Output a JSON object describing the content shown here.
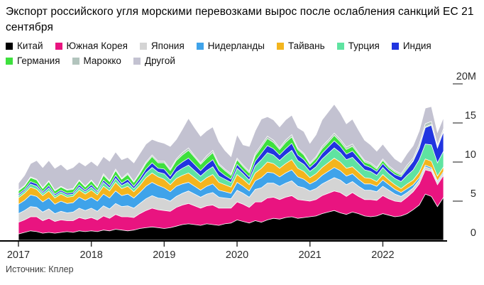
{
  "title": "Экспорт российского угля морскими перевозками вырос после ослабления санкций ЕС 21 сентября",
  "source": "Источник: Кплер",
  "chart_data": {
    "type": "area",
    "stacked": true,
    "x_start": "2017-01",
    "x_end": "2022-11",
    "x_frequency": "monthly",
    "x_ticks": [
      2017,
      2018,
      2019,
      2020,
      2021,
      2022
    ],
    "y_ticks": [
      {
        "value": 0,
        "label": "0"
      },
      {
        "value": 5,
        "label": "5"
      },
      {
        "value": 10,
        "label": "10"
      },
      {
        "value": 15,
        "label": "15"
      },
      {
        "value": 20,
        "label": "20M"
      }
    ],
    "ylim": [
      0,
      20
    ],
    "y_unit": "M",
    "grid": false,
    "legend_position": "top",
    "series": [
      {
        "name": "Китай",
        "color": "#000000",
        "values": [
          0.8,
          1.0,
          1.2,
          1.1,
          0.9,
          1.0,
          0.9,
          1.0,
          1.1,
          1.0,
          1.2,
          1.1,
          1.2,
          1.1,
          1.3,
          1.2,
          1.4,
          1.3,
          1.2,
          1.3,
          1.5,
          1.6,
          1.7,
          1.6,
          1.5,
          1.6,
          1.8,
          2.0,
          2.1,
          2.0,
          1.9,
          2.1,
          2.0,
          1.9,
          2.1,
          2.2,
          2.6,
          2.4,
          2.2,
          2.5,
          2.3,
          2.6,
          2.8,
          2.7,
          2.9,
          3.0,
          2.8,
          2.9,
          3.0,
          3.1,
          3.4,
          3.6,
          3.8,
          3.5,
          3.3,
          3.6,
          3.4,
          3.1,
          3.0,
          3.1,
          3.4,
          3.2,
          3.0,
          3.1,
          3.4,
          3.9,
          4.5,
          5.9,
          5.6,
          4.3,
          5.5
        ]
      },
      {
        "name": "Южная Корея",
        "color": "#e91480",
        "values": [
          1.5,
          1.6,
          1.8,
          1.9,
          1.6,
          1.8,
          1.5,
          1.6,
          1.4,
          1.5,
          1.7,
          1.6,
          1.7,
          1.5,
          1.8,
          1.6,
          1.9,
          1.7,
          1.8,
          1.6,
          1.9,
          2.2,
          2.4,
          2.3,
          2.3,
          2.1,
          2.4,
          2.5,
          2.6,
          2.4,
          2.2,
          2.3,
          2.5,
          2.2,
          2.0,
          1.9,
          2.3,
          2.2,
          2.0,
          2.4,
          2.6,
          2.8,
          2.7,
          2.5,
          2.6,
          2.7,
          2.4,
          2.2,
          2.0,
          2.1,
          2.3,
          2.4,
          2.5,
          2.6,
          2.3,
          2.5,
          2.2,
          2.1,
          2.2,
          2.0,
          2.3,
          2.1,
          2.0,
          1.8,
          2.1,
          2.3,
          2.7,
          3.1,
          3.2,
          2.8,
          2.8
        ]
      },
      {
        "name": "Япония",
        "color": "#d4d4d4",
        "values": [
          1.1,
          1.2,
          1.3,
          1.2,
          1.1,
          1.2,
          1.0,
          1.1,
          1.0,
          1.1,
          1.2,
          1.1,
          1.2,
          1.1,
          1.3,
          1.2,
          1.4,
          1.3,
          1.4,
          1.2,
          1.3,
          1.5,
          1.6,
          1.5,
          1.5,
          1.3,
          1.4,
          1.5,
          1.6,
          1.5,
          1.4,
          1.5,
          1.6,
          1.4,
          1.3,
          1.2,
          1.5,
          1.4,
          1.3,
          1.6,
          1.8,
          1.9,
          1.8,
          1.7,
          1.8,
          1.9,
          1.7,
          1.6,
          1.3,
          1.4,
          1.5,
          1.6,
          1.7,
          1.6,
          1.5,
          1.4,
          1.3,
          1.2,
          1.2,
          1.1,
          1.2,
          1.1,
          0.9,
          0.7,
          0.6,
          0.5,
          0.5,
          0.4,
          0.3,
          0.3,
          0.3
        ]
      },
      {
        "name": "Нидерланды",
        "color": "#3fa3ea",
        "values": [
          1.2,
          1.3,
          1.5,
          1.4,
          1.3,
          1.4,
          1.2,
          1.3,
          1.2,
          1.2,
          1.4,
          1.3,
          1.4,
          1.3,
          1.5,
          1.4,
          1.6,
          1.4,
          1.5,
          1.3,
          1.4,
          1.6,
          1.7,
          1.6,
          1.4,
          1.2,
          1.3,
          1.2,
          1.1,
          1.0,
          0.9,
          1.0,
          1.1,
          0.9,
          0.8,
          0.7,
          1.0,
          0.9,
          0.8,
          1.1,
          1.3,
          1.4,
          1.3,
          1.2,
          1.3,
          1.4,
          1.2,
          1.1,
          0.9,
          1.0,
          1.1,
          1.2,
          1.3,
          1.2,
          1.1,
          1.0,
          0.9,
          0.8,
          0.8,
          0.7,
          0.8,
          0.7,
          0.6,
          0.5,
          0.5,
          0.4,
          0.3,
          0.2,
          0.2,
          0.2,
          0.2
        ]
      },
      {
        "name": "Тайвань",
        "color": "#f3b51e",
        "values": [
          0.8,
          0.9,
          1.0,
          0.9,
          0.8,
          0.9,
          0.8,
          0.9,
          0.8,
          0.8,
          0.9,
          0.8,
          0.9,
          0.8,
          1.0,
          0.9,
          1.1,
          0.9,
          1.0,
          0.8,
          0.9,
          1.1,
          1.2,
          1.1,
          1.1,
          0.9,
          1.0,
          1.1,
          1.2,
          1.1,
          1.0,
          1.1,
          1.2,
          1.0,
          0.9,
          0.8,
          1.0,
          0.9,
          0.8,
          1.0,
          1.2,
          1.3,
          1.2,
          1.1,
          1.2,
          1.3,
          1.1,
          1.0,
          0.8,
          0.9,
          1.0,
          1.1,
          1.2,
          1.1,
          1.0,
          0.9,
          0.9,
          0.8,
          0.7,
          0.6,
          0.7,
          0.6,
          0.6,
          0.5,
          0.6,
          0.6,
          0.7,
          0.8,
          0.8,
          0.6,
          0.6
        ]
      },
      {
        "name": "Турция",
        "color": "#5fe3a1",
        "values": [
          0.3,
          0.3,
          0.4,
          0.4,
          0.3,
          0.4,
          0.3,
          0.3,
          0.3,
          0.3,
          0.4,
          0.3,
          0.4,
          0.3,
          0.5,
          0.4,
          0.5,
          0.4,
          0.5,
          0.4,
          0.5,
          0.6,
          0.7,
          0.6,
          0.7,
          0.6,
          0.8,
          0.9,
          1.0,
          0.9,
          0.8,
          0.9,
          1.0,
          0.8,
          0.7,
          0.6,
          0.8,
          0.7,
          0.6,
          0.9,
          1.1,
          1.2,
          1.1,
          1.0,
          1.1,
          1.2,
          1.0,
          0.9,
          0.8,
          0.9,
          1.1,
          1.2,
          1.3,
          1.2,
          1.1,
          1.2,
          1.1,
          1.0,
          0.9,
          0.8,
          0.9,
          0.8,
          0.8,
          0.9,
          1.1,
          1.3,
          1.6,
          1.9,
          2.1,
          1.7,
          2.0
        ]
      },
      {
        "name": "Индия",
        "color": "#2135e0",
        "values": [
          0.2,
          0.2,
          0.3,
          0.3,
          0.2,
          0.3,
          0.2,
          0.2,
          0.2,
          0.2,
          0.3,
          0.2,
          0.3,
          0.2,
          0.3,
          0.3,
          0.4,
          0.3,
          0.4,
          0.3,
          0.4,
          0.5,
          0.6,
          0.5,
          0.6,
          0.5,
          0.7,
          0.8,
          0.9,
          0.8,
          0.7,
          0.8,
          0.9,
          0.7,
          0.5,
          0.4,
          0.5,
          0.4,
          0.4,
          0.6,
          0.8,
          0.9,
          0.8,
          0.7,
          0.8,
          0.9,
          0.7,
          0.6,
          0.5,
          0.6,
          0.7,
          0.8,
          0.9,
          0.8,
          0.7,
          0.8,
          0.7,
          0.6,
          0.5,
          0.5,
          0.5,
          0.5,
          0.5,
          0.6,
          0.8,
          1.1,
          1.5,
          2.1,
          2.5,
          1.9,
          2.5
        ]
      },
      {
        "name": "Германия",
        "color": "#3ee03e",
        "values": [
          0.4,
          0.4,
          0.5,
          0.5,
          0.4,
          0.5,
          0.4,
          0.4,
          0.4,
          0.4,
          0.5,
          0.4,
          0.5,
          0.4,
          0.6,
          0.5,
          0.6,
          0.5,
          0.6,
          0.5,
          0.6,
          0.7,
          0.8,
          0.7,
          0.8,
          0.7,
          0.8,
          0.9,
          1.0,
          0.9,
          0.8,
          0.8,
          0.9,
          0.7,
          0.6,
          0.5,
          0.6,
          0.5,
          0.5,
          0.7,
          0.8,
          0.9,
          0.8,
          0.7,
          0.8,
          0.8,
          0.7,
          0.6,
          0.4,
          0.5,
          0.6,
          0.6,
          0.7,
          0.6,
          0.6,
          0.6,
          0.5,
          0.4,
          0.4,
          0.3,
          0.4,
          0.3,
          0.3,
          0.2,
          0.2,
          0.1,
          0.1,
          0.1,
          0.1,
          0.1,
          0.1
        ]
      },
      {
        "name": "Марокко",
        "color": "#b2c4bd",
        "values": [
          0.1,
          0.1,
          0.1,
          0.1,
          0.1,
          0.1,
          0.1,
          0.1,
          0.1,
          0.1,
          0.1,
          0.1,
          0.1,
          0.1,
          0.2,
          0.1,
          0.2,
          0.1,
          0.2,
          0.1,
          0.2,
          0.2,
          0.2,
          0.2,
          0.2,
          0.2,
          0.2,
          0.3,
          0.3,
          0.2,
          0.2,
          0.3,
          0.3,
          0.2,
          0.2,
          0.2,
          0.2,
          0.2,
          0.2,
          0.3,
          0.3,
          0.3,
          0.3,
          0.2,
          0.3,
          0.3,
          0.2,
          0.2,
          0.2,
          0.2,
          0.3,
          0.3,
          0.3,
          0.3,
          0.3,
          0.3,
          0.2,
          0.2,
          0.2,
          0.2,
          0.2,
          0.2,
          0.2,
          0.2,
          0.3,
          0.3,
          0.4,
          0.4,
          0.4,
          0.3,
          0.3
        ]
      },
      {
        "name": "Другой",
        "color": "#c3c2d1",
        "values": [
          0.9,
          1.3,
          1.7,
          2.4,
          2.6,
          2.6,
          2.8,
          2.8,
          2.5,
          2.7,
          2.3,
          2.6,
          2.4,
          2.7,
          2.2,
          2.5,
          2.2,
          2.4,
          2.0,
          2.4,
          2.4,
          2.3,
          2.0,
          2.5,
          2.3,
          2.9,
          2.5,
          3.0,
          3.8,
          3.6,
          3.4,
          3.2,
          3.0,
          2.8,
          2.4,
          2.2,
          3.0,
          2.6,
          3.2,
          2.9,
          3.3,
          2.5,
          2.6,
          2.7,
          2.6,
          2.5,
          2.6,
          2.8,
          2.5,
          2.8,
          3.4,
          3.6,
          3.7,
          3.4,
          3.0,
          3.2,
          2.9,
          2.6,
          2.3,
          2.1,
          1.9,
          1.8,
          1.5,
          1.4,
          1.5,
          1.6,
          1.7,
          2.0,
          1.9,
          1.6,
          1.4
        ]
      }
    ]
  }
}
